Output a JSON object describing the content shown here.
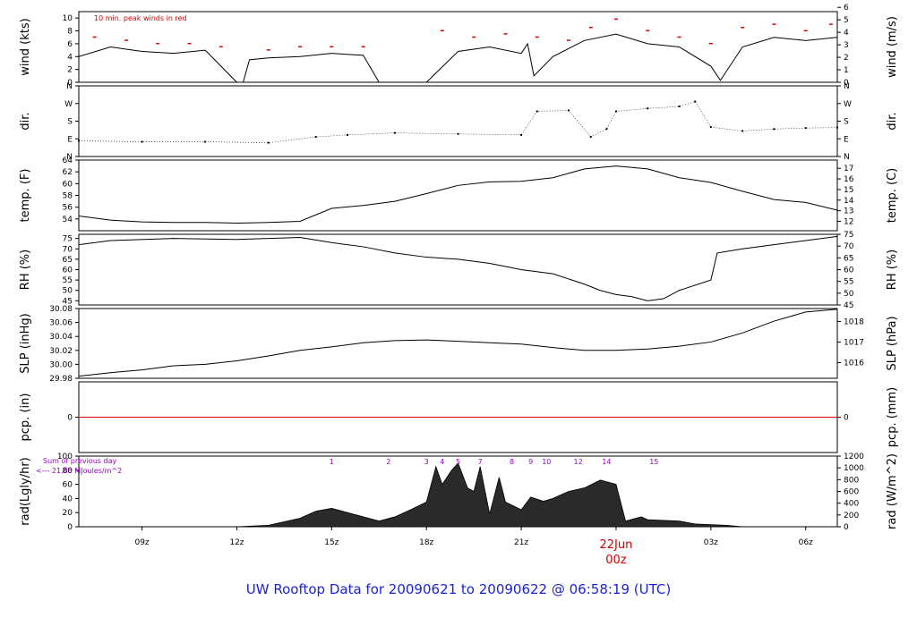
{
  "footer_title": "UW Rooftop Data for 20090621  to  20090622 @ 06:58:19  (UTC)",
  "colors": {
    "trace": "#000000",
    "peak": "#d40000",
    "pcp": "#d40000",
    "annot": "#9b00c8",
    "footer": "#1a23d8",
    "date": "#d40000",
    "frame": "#000000"
  },
  "chart_data": {
    "type": "line",
    "x_axis": {
      "ticks": [
        "09z",
        "12z",
        "15z",
        "18z",
        "21z",
        "00z",
        "03z",
        "06z"
      ],
      "tick_hours": [
        9,
        12,
        15,
        18,
        21,
        24,
        27,
        30
      ],
      "date_label": "22Jun",
      "date_hour_label": "00z",
      "range_hours": [
        7.0,
        31.0
      ]
    },
    "panels": [
      {
        "id": "wind",
        "ylabel_left": "wind (kts)",
        "ylabel_right": "wind (m/s)",
        "annotation": "10 min. peak winds in red",
        "ylim": [
          0,
          11
        ],
        "yticks_left": [
          "0",
          "2",
          "4",
          "6",
          "8",
          "10"
        ],
        "yticks_right": [
          "0",
          "1",
          "2",
          "3",
          "4",
          "5",
          "6"
        ],
        "series": [
          {
            "name": "wind speed",
            "x": [
              7.0,
              8.0,
              9.0,
              10.0,
              11.0,
              12.0,
              12.2,
              12.4,
              13.0,
              14.0,
              15.0,
              16.0,
              16.5,
              18.0,
              19.0,
              20.0,
              21.0,
              21.2,
              21.4,
              22.0,
              23.0,
              24.0,
              25.0,
              26.0,
              27.0,
              27.3,
              28.0,
              29.0,
              30.0,
              31.0
            ],
            "y": [
              4,
              5.5,
              4.8,
              4.5,
              5.0,
              0,
              0,
              3.5,
              3.8,
              4.0,
              4.5,
              4.2,
              0,
              0,
              4.8,
              5.5,
              4.5,
              6.0,
              1,
              4.0,
              6.5,
              7.5,
              6.0,
              5.5,
              2.5,
              0.3,
              5.5,
              7.0,
              6.5,
              7.0
            ]
          },
          {
            "name": "10 min. peak",
            "x": [
              7.5,
              8.5,
              9.5,
              10.5,
              11.5,
              13.0,
              14.0,
              15.0,
              16.0,
              18.5,
              19.5,
              20.5,
              21.5,
              22.5,
              23.2,
              24.0,
              25.0,
              26.0,
              27.0,
              28.0,
              29.0,
              30.0,
              30.8
            ],
            "y": [
              7,
              6.5,
              6,
              6,
              5.5,
              5,
              5.5,
              5.5,
              5.5,
              8,
              7,
              7.5,
              7,
              6.5,
              8.5,
              9.8,
              8,
              7,
              6,
              8.5,
              9,
              8,
              9
            ]
          }
        ]
      },
      {
        "id": "dir",
        "ylabel_left": "dir.",
        "ylabel_right": "dir.",
        "ylim": [
          0,
          360
        ],
        "yticks_left": [
          "N",
          "E",
          "S",
          "W",
          "N"
        ],
        "yticks_right": [
          "N",
          "E",
          "S",
          "W",
          "N"
        ],
        "series": [
          {
            "name": "wind direction",
            "x": [
              7.0,
              9.0,
              11.0,
              13.0,
              14.5,
              15.5,
              17.0,
              19.0,
              21.0,
              21.5,
              22.5,
              23.2,
              23.7,
              24.0,
              25.0,
              26.0,
              26.5,
              27.0,
              28.0,
              29.0,
              30.0,
              31.0
            ],
            "y": [
              80,
              75,
              75,
              70,
              100,
              110,
              120,
              115,
              110,
              230,
              235,
              100,
              140,
              230,
              245,
              255,
              280,
              150,
              130,
              140,
              145,
              148
            ]
          }
        ]
      },
      {
        "id": "temp",
        "ylabel_left": "temp. (F)",
        "ylabel_right": "temp. (C)",
        "ylim": [
          52,
          64
        ],
        "yticks_left": [
          "54",
          "56",
          "58",
          "60",
          "62",
          "64"
        ],
        "yticks_right": [
          "12",
          "13",
          "14",
          "15",
          "16",
          "17"
        ],
        "series": [
          {
            "name": "temperature",
            "x": [
              7.0,
              8.0,
              9.0,
              10.0,
              11.0,
              12.0,
              13.0,
              14.0,
              15.0,
              16.0,
              17.0,
              18.0,
              19.0,
              20.0,
              21.0,
              22.0,
              23.0,
              24.0,
              25.0,
              26.0,
              27.0,
              28.0,
              29.0,
              30.0,
              31.0
            ],
            "y": [
              54.5,
              53.8,
              53.5,
              53.4,
              53.4,
              53.3,
              53.4,
              53.6,
              55.8,
              56.3,
              57.0,
              58.3,
              59.7,
              60.3,
              60.4,
              61.0,
              62.5,
              63.0,
              62.5,
              61.0,
              60.2,
              58.7,
              57.3,
              56.8,
              55.5
            ]
          }
        ]
      },
      {
        "id": "rh",
        "ylabel_left": "RH (%)",
        "ylabel_right": "RH (%)",
        "ylim": [
          43,
          77
        ],
        "yticks_left": [
          "45",
          "50",
          "55",
          "60",
          "65",
          "70",
          "75"
        ],
        "yticks_right": [
          "45",
          "50",
          "55",
          "60",
          "65",
          "70",
          "75"
        ],
        "series": [
          {
            "name": "relative humidity",
            "x": [
              7.0,
              8.0,
              10.0,
              12.0,
              13.0,
              14.0,
              15.0,
              16.0,
              17.0,
              18.0,
              19.0,
              20.0,
              21.0,
              22.0,
              23.0,
              23.5,
              24.0,
              24.5,
              25.0,
              25.5,
              26.0,
              27.0,
              27.2,
              28.0,
              29.0,
              30.0,
              31.0
            ],
            "y": [
              72,
              74,
              75,
              74.5,
              75,
              75.5,
              73,
              71,
              68,
              66,
              65,
              63,
              60,
              58,
              53,
              50,
              48,
              47,
              45,
              46,
              50,
              55,
              68,
              70,
              72,
              74,
              76
            ]
          }
        ]
      },
      {
        "id": "slp",
        "ylabel_left": "SLP (inHg)",
        "ylabel_right": "SLP (hPa)",
        "ylim": [
          29.98,
          30.08
        ],
        "yticks_left": [
          "29.98",
          "30.00",
          "30.02",
          "30.04",
          "30.06",
          "30.08"
        ],
        "yticks_right": [
          "1016",
          "1017",
          "1018"
        ],
        "yticks_right_at": [
          1016,
          1017,
          1018
        ],
        "series": [
          {
            "name": "sea level pressure",
            "x": [
              7.0,
              8.0,
              9.0,
              10.0,
              11.0,
              12.0,
              13.0,
              14.0,
              15.0,
              16.0,
              17.0,
              18.0,
              19.0,
              20.0,
              21.0,
              22.0,
              23.0,
              24.0,
              25.0,
              26.0,
              27.0,
              28.0,
              29.0,
              30.0,
              31.0
            ],
            "y": [
              29.983,
              29.988,
              29.992,
              29.998,
              30.0,
              30.005,
              30.012,
              30.02,
              30.025,
              30.031,
              30.034,
              30.035,
              30.033,
              30.031,
              30.029,
              30.024,
              30.02,
              30.02,
              30.022,
              30.026,
              30.032,
              30.045,
              30.062,
              30.075,
              30.079
            ]
          }
        ]
      },
      {
        "id": "pcp",
        "ylabel_left": "pcp. (in)",
        "ylabel_right": "pcp. (mm)",
        "ylim": [
          -1,
          1
        ],
        "yticks_left": [
          "0"
        ],
        "yticks_right": [
          "0"
        ],
        "series": [
          {
            "name": "precipitation",
            "x": [
              7.0,
              31.0
            ],
            "y": [
              0,
              0
            ]
          }
        ]
      },
      {
        "id": "rad",
        "ylabel_left": "rad(Lgly/hr)",
        "ylabel_right": "rad (W/m^2)",
        "annotation_lines": [
          "Sum of previous day",
          "<--- 21.85 MJoules/m^2"
        ],
        "ylim": [
          0,
          100
        ],
        "yticks_left": [
          "0",
          "20",
          "40",
          "60",
          "80",
          "100"
        ],
        "yticks_right": [
          "0",
          "200",
          "400",
          "600",
          "800",
          "1000",
          "1200"
        ],
        "hour_labels": [
          "1",
          "2",
          "3",
          "4",
          "5",
          "7",
          "8",
          "9",
          "10",
          "12",
          "14",
          "15"
        ],
        "hour_label_x": [
          15.0,
          16.8,
          18.0,
          18.5,
          19.0,
          19.7,
          20.7,
          21.3,
          21.8,
          22.8,
          23.7,
          25.2
        ],
        "series": [
          {
            "name": "solar radiation",
            "x": [
              12.0,
              13.0,
              14.0,
              14.5,
              15.0,
              16.0,
              16.5,
              17.0,
              17.5,
              18.0,
              18.3,
              18.5,
              18.8,
              19.0,
              19.3,
              19.5,
              19.7,
              20.0,
              20.3,
              20.5,
              21.0,
              21.3,
              21.7,
              22.0,
              22.5,
              23.0,
              23.5,
              24.0,
              24.3,
              24.8,
              25.0,
              26.0,
              26.5,
              27.0,
              27.5,
              28.0
            ],
            "y": [
              0,
              2,
              12,
              22,
              26,
              14,
              8,
              14,
              24,
              35,
              85,
              60,
              80,
              90,
              55,
              50,
              85,
              18,
              70,
              35,
              24,
              42,
              36,
              40,
              50,
              55,
              66,
              60,
              8,
              14,
              10,
              8,
              4,
              3,
              2,
              0
            ]
          }
        ]
      }
    ]
  }
}
